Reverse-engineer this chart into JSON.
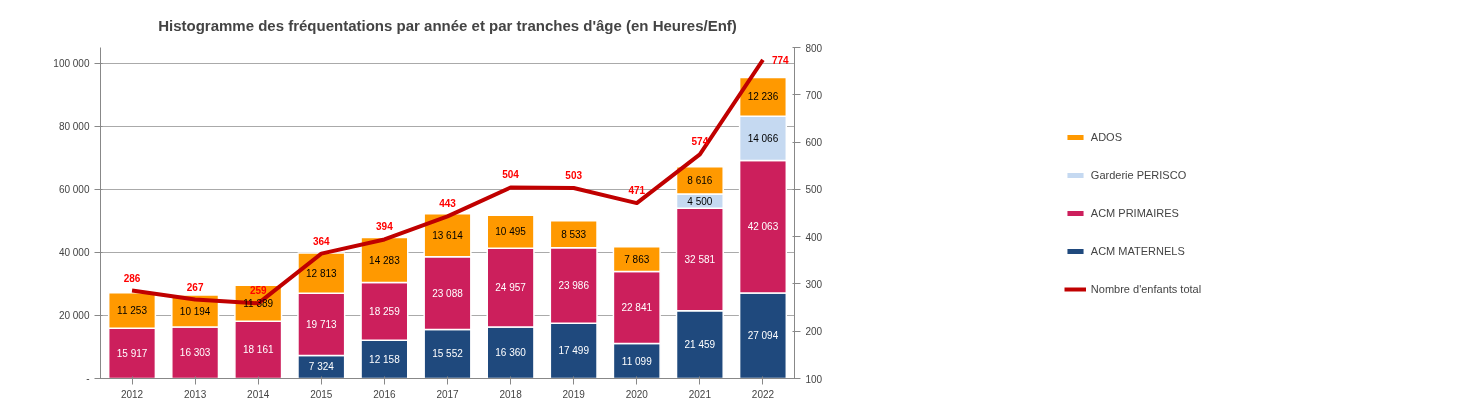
{
  "chart_data": {
    "type": "bar",
    "title": "Histogramme des fréquentations par année et par tranches d'âge (en Heures/Enf)",
    "categories": [
      "2012",
      "2013",
      "2014",
      "2015",
      "2016",
      "2017",
      "2018",
      "2019",
      "2020",
      "2021",
      "2022"
    ],
    "stacked": true,
    "series": [
      {
        "name": "ACM MATERNELS",
        "color": "#1f497d",
        "values": [
          null,
          null,
          null,
          7324,
          12158,
          15552,
          16360,
          17499,
          11099,
          21459,
          27094
        ],
        "value_labels": [
          null,
          null,
          null,
          "7 324",
          "12 158",
          "15 552",
          "16 360",
          "17 499",
          "11 099",
          "21 459",
          "27 094"
        ]
      },
      {
        "name": "ACM PRIMAIRES",
        "color": "#cc1f5c",
        "values": [
          15917,
          16303,
          18161,
          19713,
          18259,
          23088,
          24957,
          23986,
          22841,
          32581,
          42063
        ],
        "value_labels": [
          "15 917",
          "16 303",
          "18 161",
          "19 713",
          "18 259",
          "23 088",
          "24 957",
          "23 986",
          "22 841",
          "32 581",
          "42 063"
        ]
      },
      {
        "name": "Garderie PERISCO",
        "color": "#c5d9f1",
        "values": [
          null,
          null,
          null,
          null,
          null,
          null,
          null,
          null,
          null,
          4500,
          14066
        ],
        "value_labels": [
          null,
          null,
          null,
          null,
          null,
          null,
          null,
          null,
          null,
          "4 500",
          "14 066"
        ]
      },
      {
        "name": "ADOS",
        "color": "#ff9900",
        "values": [
          11253,
          10194,
          11389,
          12813,
          14283,
          13614,
          10495,
          8533,
          7863,
          8616,
          12236
        ],
        "value_labels": [
          "11 253",
          "10 194",
          "11 389",
          "12 813",
          "14 283",
          "13 614",
          "10 495",
          "8 533",
          "7 863",
          "8 616",
          "12 236"
        ]
      },
      {
        "name": "Nombre d'enfants total",
        "type": "line",
        "axis": "y2",
        "color": "#c00000",
        "values": [
          286,
          267,
          259,
          364,
          394,
          443,
          504,
          503,
          471,
          574,
          774
        ],
        "data_labels": true
      }
    ],
    "ylim": [
      0,
      105000
    ],
    "yticks": [
      {
        "value": 0,
        "label": "-"
      },
      {
        "value": 20000,
        "label": "20 000"
      },
      {
        "value": 40000,
        "label": "40 000"
      },
      {
        "value": 60000,
        "label": "60 000"
      },
      {
        "value": 80000,
        "label": "80 000"
      },
      {
        "value": 100000,
        "label": "100 000"
      }
    ],
    "y2lim": [
      100,
      800
    ],
    "y2ticks": [
      100,
      200,
      300,
      400,
      500,
      600,
      700,
      800
    ],
    "grid": "y",
    "legend": "right"
  }
}
